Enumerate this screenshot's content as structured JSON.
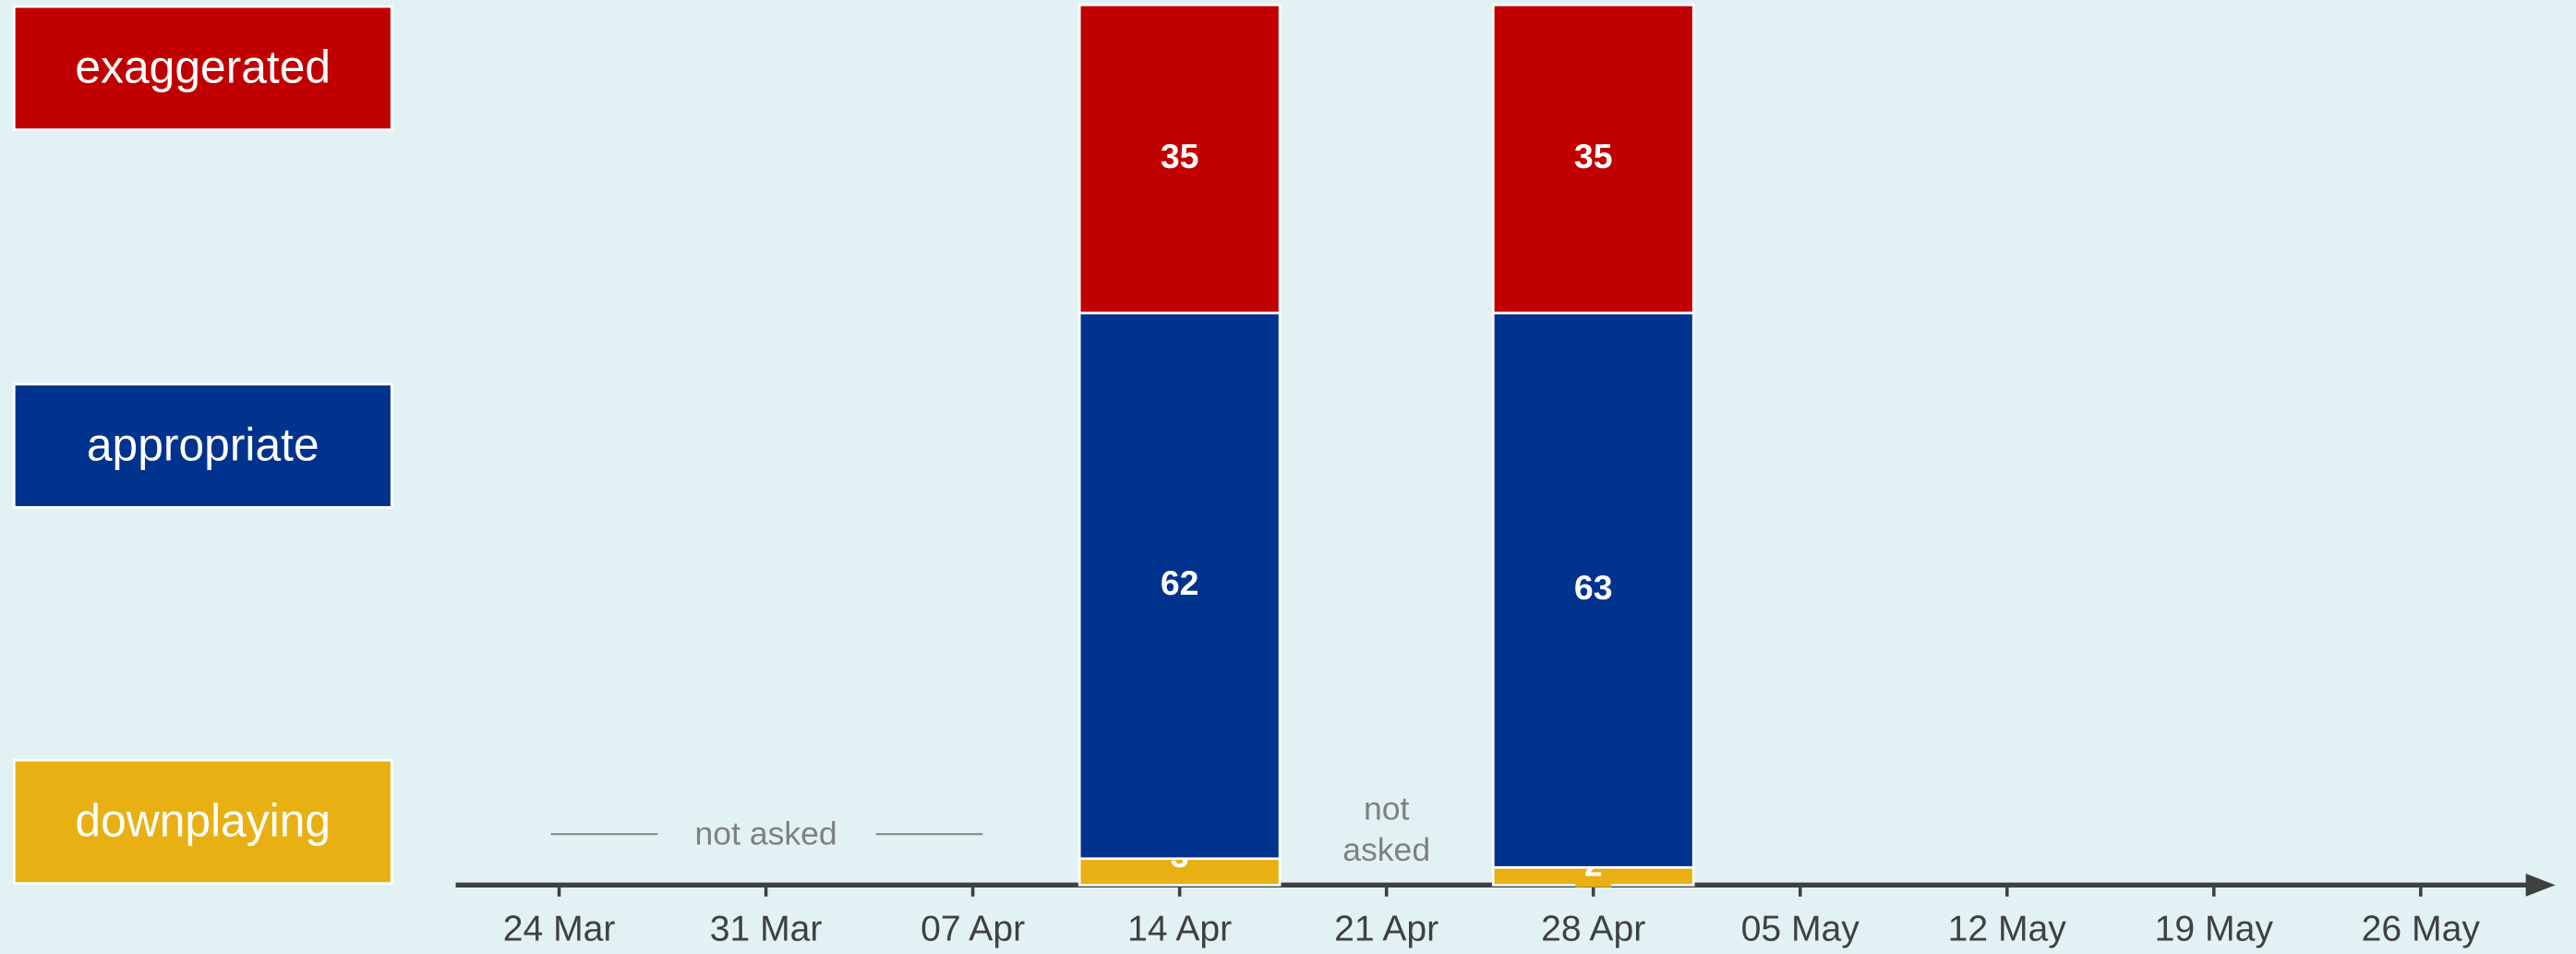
{
  "chart_data": {
    "type": "stacked_bar",
    "categories": [
      "24 Mar",
      "31 Mar",
      "07 Apr",
      "14 Apr",
      "21 Apr",
      "28 Apr",
      "05 May",
      "12 May",
      "19 May",
      "26 May"
    ],
    "series": [
      {
        "name": "downplaying",
        "color": "#e8b012",
        "values": [
          null,
          null,
          null,
          3,
          null,
          2,
          null,
          null,
          null,
          null
        ]
      },
      {
        "name": "appropriate",
        "color": "#00338d",
        "values": [
          null,
          null,
          null,
          62,
          null,
          63,
          null,
          null,
          null,
          null
        ]
      },
      {
        "name": "exaggerated",
        "color": "#c00000",
        "values": [
          null,
          null,
          null,
          35,
          null,
          35,
          null,
          null,
          null,
          null
        ]
      }
    ],
    "ylim": [
      0,
      100
    ],
    "annotations": [
      {
        "lines": [
          "not asked"
        ]
      },
      {
        "lines": [
          "not",
          "asked"
        ]
      }
    ]
  }
}
